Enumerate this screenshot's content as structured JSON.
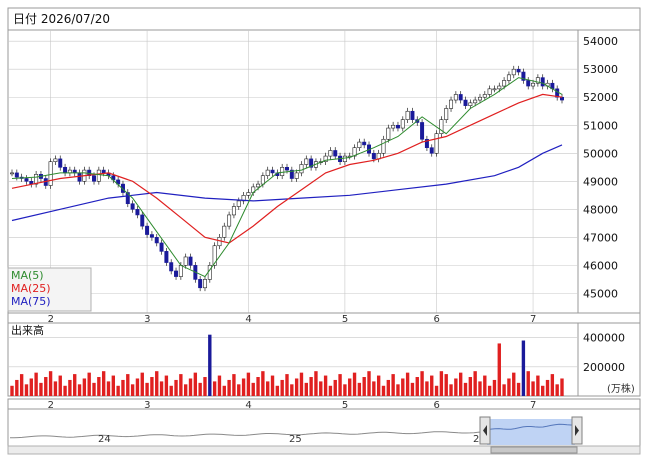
{
  "header": {
    "date_label": "日付 2026/07/20"
  },
  "indicators": {
    "ma5": "MA(5)",
    "ma25": "MA(25)",
    "ma75": "MA(75)",
    "volume_label": "出来高",
    "volume_unit": "(万株)"
  },
  "colors": {
    "up_candle": "#ffffff",
    "down_candle": "#1a1a9a",
    "ma5": "#2e8b2e",
    "ma25": "#e02020",
    "ma75": "#2020c0",
    "volume_bar": "#e02020",
    "volume_spike": "#e02020",
    "volume_blue_spike": "#1a1a9a",
    "grid": "#c8c8c8"
  },
  "navigator": {
    "year_labels": [
      "24",
      "25",
      "2"
    ]
  },
  "chart_data": [
    {
      "type": "candlestick",
      "ylim": [
        44300,
        54400
      ],
      "y_ticks": [
        45000,
        46000,
        47000,
        48000,
        49000,
        50000,
        51000,
        52000,
        53000,
        54000
      ],
      "x_month_labels": [
        {
          "label": "2",
          "index": 8
        },
        {
          "label": "3",
          "index": 28
        },
        {
          "label": "4",
          "index": 49
        },
        {
          "label": "5",
          "index": 69
        },
        {
          "label": "6",
          "index": 88
        },
        {
          "label": "7",
          "index": 108
        }
      ],
      "closes": [
        49300,
        49150,
        49100,
        49000,
        48900,
        49250,
        49100,
        48850,
        49700,
        49800,
        49500,
        49300,
        49400,
        49300,
        49000,
        49400,
        49200,
        49000,
        49400,
        49300,
        49200,
        49050,
        48900,
        48600,
        48200,
        48000,
        47800,
        47400,
        47100,
        47000,
        46800,
        46500,
        46100,
        45800,
        45600,
        46000,
        46300,
        46000,
        45500,
        45200,
        45500,
        46000,
        46700,
        47000,
        47400,
        47800,
        48100,
        48300,
        48500,
        48600,
        48800,
        48900,
        49200,
        49400,
        49300,
        49200,
        49500,
        49400,
        49100,
        49300,
        49600,
        49800,
        49500,
        49700,
        49700,
        49900,
        50100,
        49900,
        49700,
        49900,
        49900,
        50200,
        50400,
        50300,
        50000,
        49800,
        50000,
        50500,
        50900,
        51000,
        50900,
        51200,
        51500,
        51200,
        51100,
        50500,
        50200,
        50000,
        50700,
        51200,
        51600,
        51900,
        52100,
        51900,
        51700,
        51800,
        51900,
        52000,
        52100,
        52300,
        52300,
        52400,
        52600,
        52800,
        53000,
        52900,
        52600,
        52400,
        52500,
        52700,
        52400,
        52500,
        52300,
        52000,
        51900
      ],
      "ma5_sample": [
        [
          0,
          49100
        ],
        [
          5,
          49150
        ],
        [
          10,
          49300
        ],
        [
          15,
          49300
        ],
        [
          20,
          49200
        ],
        [
          25,
          48400
        ],
        [
          30,
          47200
        ],
        [
          35,
          46000
        ],
        [
          40,
          45600
        ],
        [
          45,
          46800
        ],
        [
          50,
          48600
        ],
        [
          55,
          49300
        ],
        [
          60,
          49400
        ],
        [
          65,
          49750
        ],
        [
          70,
          49850
        ],
        [
          75,
          50200
        ],
        [
          80,
          50600
        ],
        [
          85,
          51300
        ],
        [
          90,
          50700
        ],
        [
          95,
          51600
        ],
        [
          100,
          52100
        ],
        [
          105,
          52700
        ],
        [
          110,
          52500
        ],
        [
          114,
          52100
        ]
      ],
      "ma25_sample": [
        [
          0,
          48750
        ],
        [
          10,
          49100
        ],
        [
          20,
          49300
        ],
        [
          25,
          49000
        ],
        [
          30,
          48400
        ],
        [
          35,
          47700
        ],
        [
          40,
          47000
        ],
        [
          45,
          46800
        ],
        [
          50,
          47400
        ],
        [
          55,
          48100
        ],
        [
          60,
          48700
        ],
        [
          65,
          49300
        ],
        [
          70,
          49600
        ],
        [
          75,
          49750
        ],
        [
          80,
          50000
        ],
        [
          85,
          50400
        ],
        [
          90,
          50600
        ],
        [
          95,
          51000
        ],
        [
          100,
          51400
        ],
        [
          105,
          51800
        ],
        [
          110,
          52100
        ],
        [
          114,
          52000
        ]
      ],
      "ma75_sample": [
        [
          0,
          47600
        ],
        [
          10,
          48000
        ],
        [
          20,
          48400
        ],
        [
          30,
          48600
        ],
        [
          40,
          48400
        ],
        [
          50,
          48300
        ],
        [
          60,
          48400
        ],
        [
          70,
          48500
        ],
        [
          80,
          48700
        ],
        [
          90,
          48900
        ],
        [
          100,
          49200
        ],
        [
          105,
          49500
        ],
        [
          110,
          50000
        ],
        [
          114,
          50300
        ]
      ]
    },
    {
      "type": "bar",
      "ylabel_unit": "(万株)",
      "ylim": [
        0,
        500000
      ],
      "y_ticks": [
        200000,
        400000
      ],
      "spikes": [
        {
          "index": 41,
          "value": 420000,
          "series": "blue"
        },
        {
          "index": 89,
          "value": 170000,
          "series": "red"
        },
        {
          "index": 101,
          "value": 360000,
          "series": "red"
        },
        {
          "index": 106,
          "value": 380000,
          "series": "blue"
        }
      ],
      "typical_range": [
        70000,
        170000
      ]
    }
  ]
}
